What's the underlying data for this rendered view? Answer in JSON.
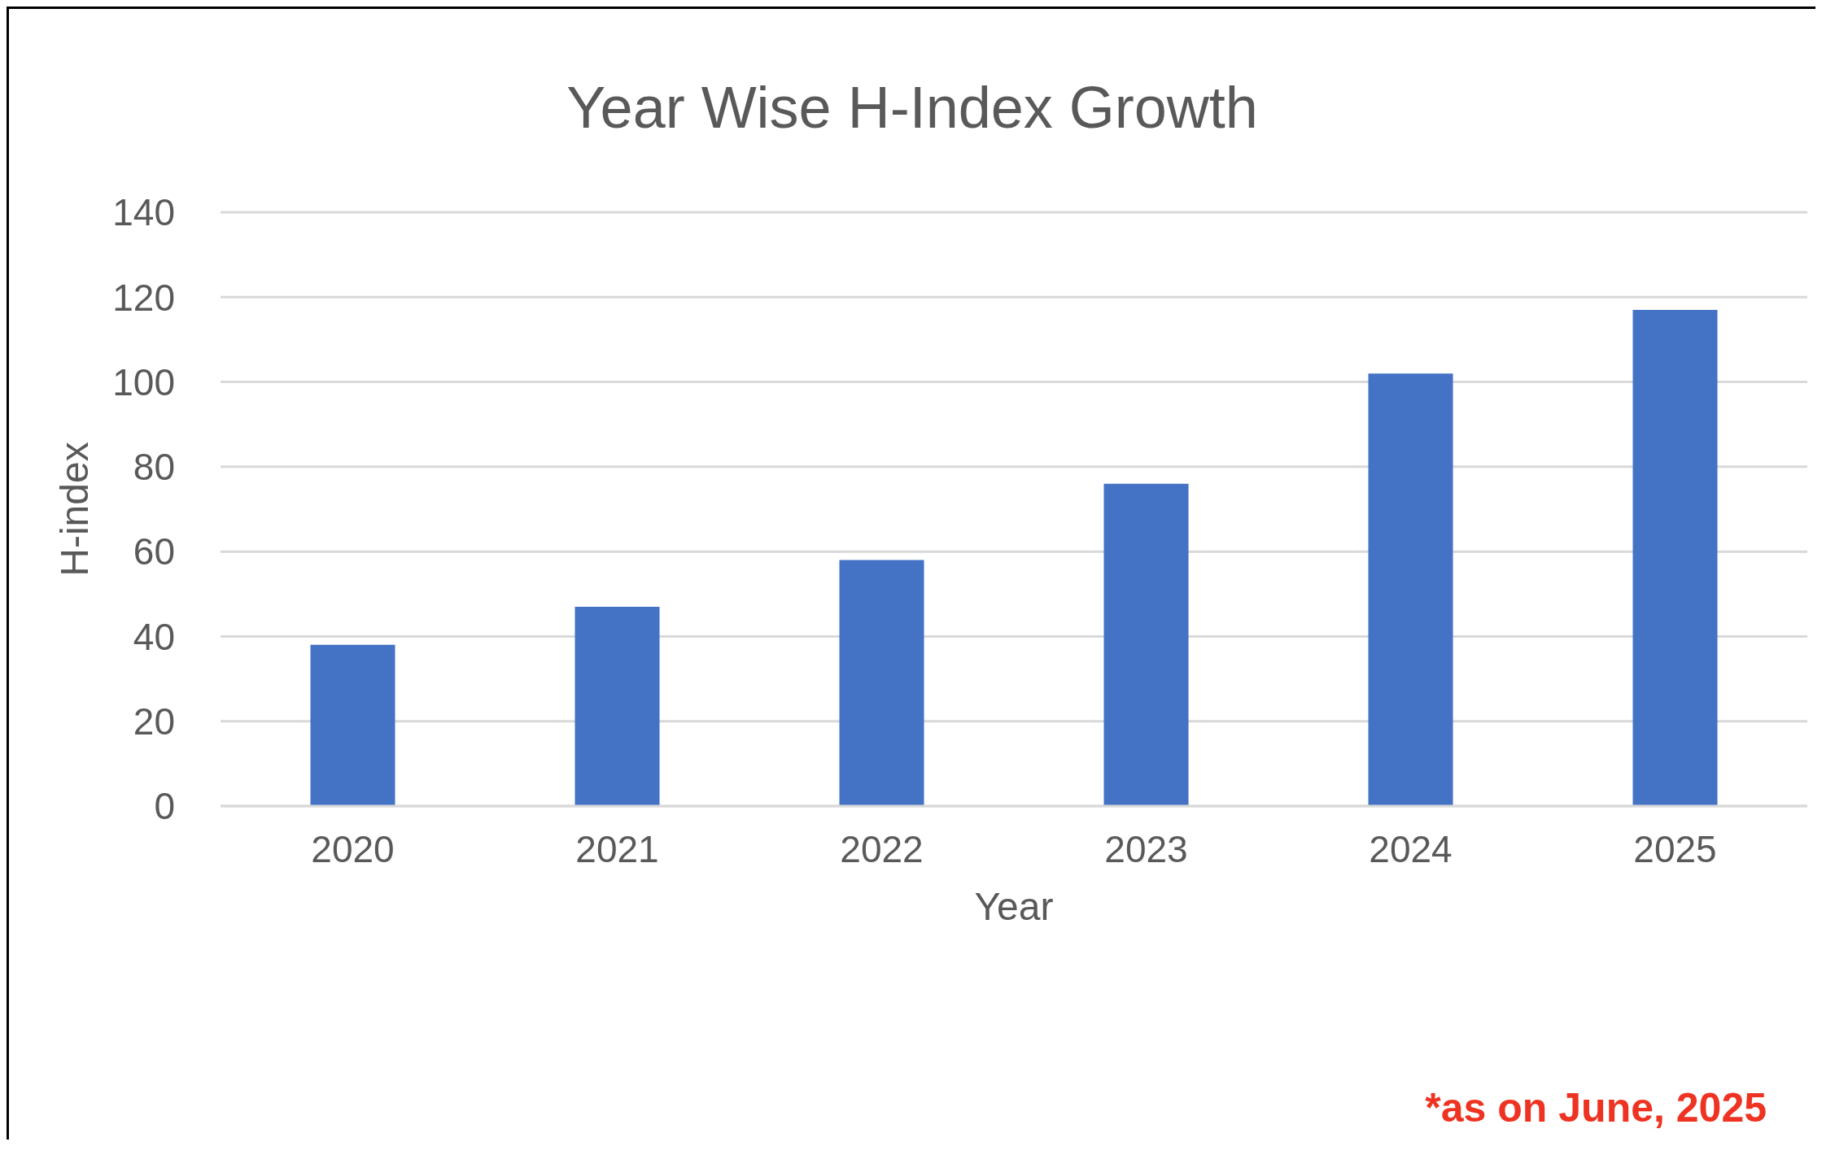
{
  "chart_data": {
    "type": "bar",
    "title": "Year Wise H-Index Growth",
    "xlabel": "Year",
    "ylabel": "H-index",
    "categories": [
      "2020",
      "2021",
      "2022",
      "2023",
      "2024",
      "2025"
    ],
    "values": [
      38,
      47,
      58,
      76,
      102,
      117
    ],
    "color": "#4472c4",
    "ylim": [
      0,
      140
    ],
    "yticks": [
      0,
      20,
      40,
      60,
      80,
      100,
      120,
      140
    ],
    "grid": "y",
    "annotations": [
      "*as on June, 2025"
    ]
  }
}
